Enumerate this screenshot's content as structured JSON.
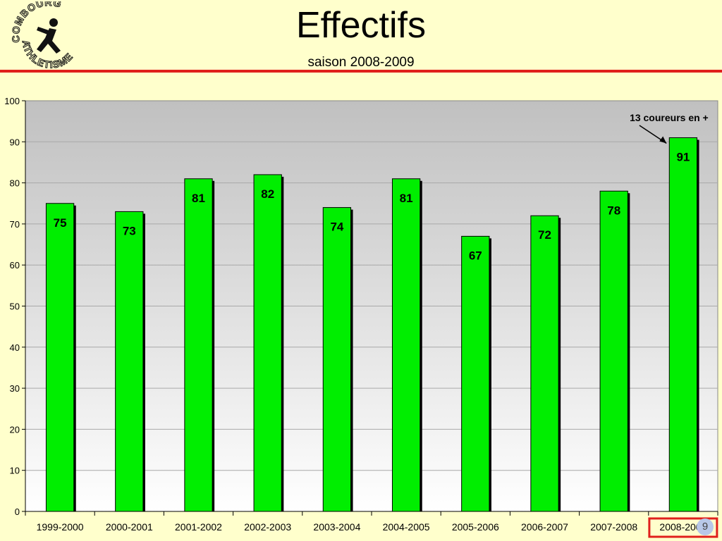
{
  "header": {
    "title": "Effectifs",
    "subtitle": "saison 2008-2009",
    "logo_text_top": "COMBOURG",
    "logo_text_bottom": "ATHLETISME"
  },
  "colors": {
    "background": "#ffffcc",
    "bar": "#00ee00",
    "rule": "#e0201c",
    "highlight_box": "#e0201c"
  },
  "chart_data": {
    "type": "bar",
    "title": "",
    "xlabel": "",
    "ylabel": "",
    "categories": [
      "1999-2000",
      "2000-2001",
      "2001-2002",
      "2002-2003",
      "2003-2004",
      "2004-2005",
      "2005-2006",
      "2006-2007",
      "2007-2008",
      "2008-2009"
    ],
    "values": [
      75,
      73,
      81,
      82,
      74,
      81,
      67,
      72,
      78,
      91
    ],
    "ylim": [
      0,
      100
    ],
    "yticks": [
      0,
      10,
      20,
      30,
      40,
      50,
      60,
      70,
      80,
      90,
      100
    ],
    "grid": true,
    "data_labels": true,
    "highlighted_category": "2008-2009",
    "annotation": {
      "text": "13 coureurs en +",
      "target_category": "2008-2009"
    }
  },
  "page_number": "9"
}
